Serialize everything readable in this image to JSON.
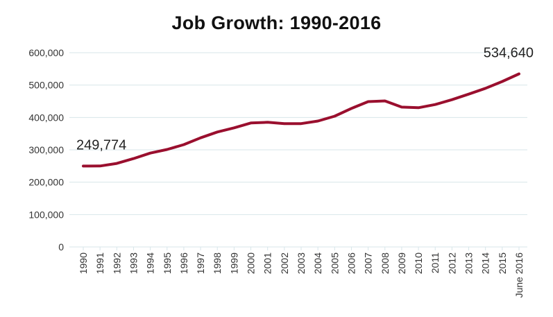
{
  "title": "Job Growth: 1990-2016",
  "colors": {
    "line": "#9a0f2e",
    "grid": "#d7e6ea",
    "axis": "#d7e6ea"
  },
  "chart_data": {
    "type": "line",
    "title": "Job Growth: 1990-2016",
    "xlabel": "",
    "ylabel": "",
    "ylim": [
      0,
      600000
    ],
    "yticks": [
      0,
      100000,
      200000,
      300000,
      400000,
      500000,
      600000
    ],
    "ytick_labels": [
      "0",
      "100,000",
      "200,000",
      "300,000",
      "400,000",
      "500,000",
      "600,000"
    ],
    "grid": true,
    "categories": [
      "1990",
      "1991",
      "1992",
      "1993",
      "1994",
      "1995",
      "1996",
      "1997",
      "1998",
      "1999",
      "2000",
      "2001",
      "2002",
      "2003",
      "2004",
      "2005",
      "2006",
      "2007",
      "2008",
      "2009",
      "2010",
      "2011",
      "2012",
      "2013",
      "2014",
      "2015",
      "June 2016"
    ],
    "values": [
      249774,
      250000,
      258000,
      273000,
      290000,
      301000,
      316000,
      337000,
      355000,
      368000,
      383000,
      385000,
      381000,
      381000,
      389000,
      404000,
      428000,
      449000,
      451000,
      432000,
      430000,
      440000,
      455000,
      472000,
      490000,
      511000,
      534640
    ],
    "annotations": [
      {
        "index": 0,
        "text": "249,774"
      },
      {
        "index": 26,
        "text": "534,640"
      }
    ]
  }
}
